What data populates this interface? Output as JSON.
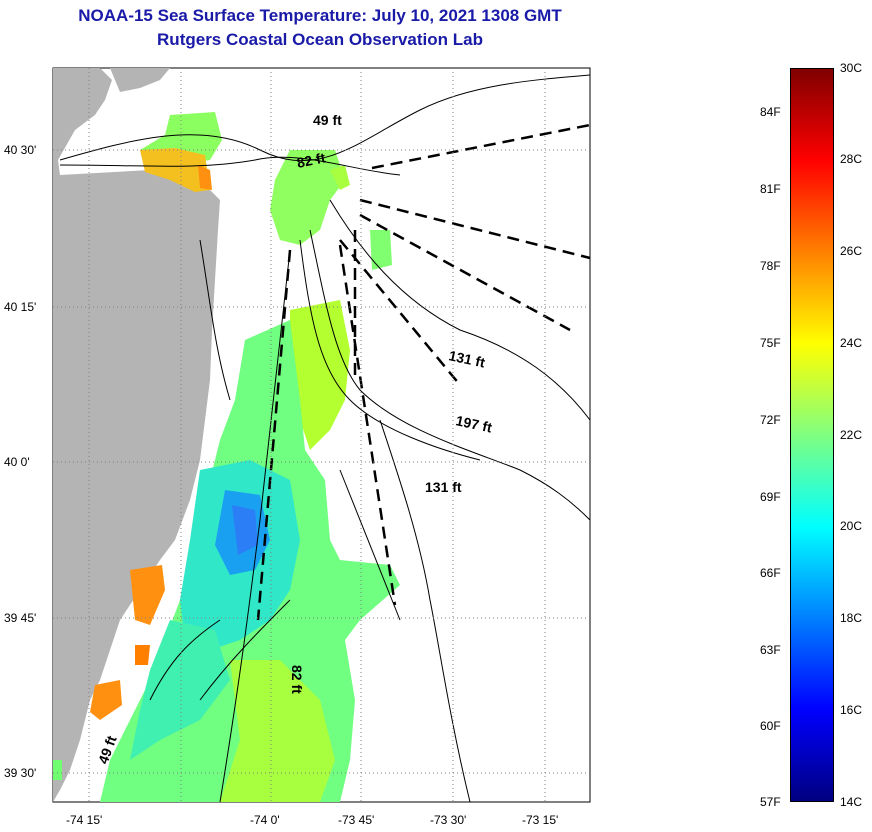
{
  "header": {
    "title": "NOAA-15 Sea Surface Temperature:  July 10, 2021 1308 GMT",
    "subtitle": "Rutgers Coastal Ocean Observation Lab"
  },
  "map": {
    "lat_labels": [
      "40 30'",
      "40 15'",
      "40 0'",
      "39 45'",
      "39 30'"
    ],
    "lon_labels": [
      "-74 15'",
      "-74 0'",
      "-73 45'",
      "-73 30'",
      "-73 15'"
    ],
    "depth_labels": [
      "49 ft",
      "82 ft",
      "131 ft",
      "197 ft",
      "131 ft",
      "82 ft",
      "49 ft"
    ],
    "colors": {
      "land": "#b4b4b4",
      "water_nodata": "#ffffff"
    }
  },
  "colorbar": {
    "fahrenheit_labels": [
      "84F",
      "81F",
      "78F",
      "75F",
      "72F",
      "69F",
      "66F",
      "63F",
      "60F",
      "57F"
    ],
    "celsius_labels": [
      "30C",
      "28C",
      "26C",
      "24C",
      "22C",
      "20C",
      "18C",
      "16C",
      "14C"
    ],
    "gradient": [
      "#800000",
      "#ff0000",
      "#ff8000",
      "#ffff00",
      "#80ff80",
      "#00ffff",
      "#0080ff",
      "#0000ff",
      "#000080"
    ]
  }
}
